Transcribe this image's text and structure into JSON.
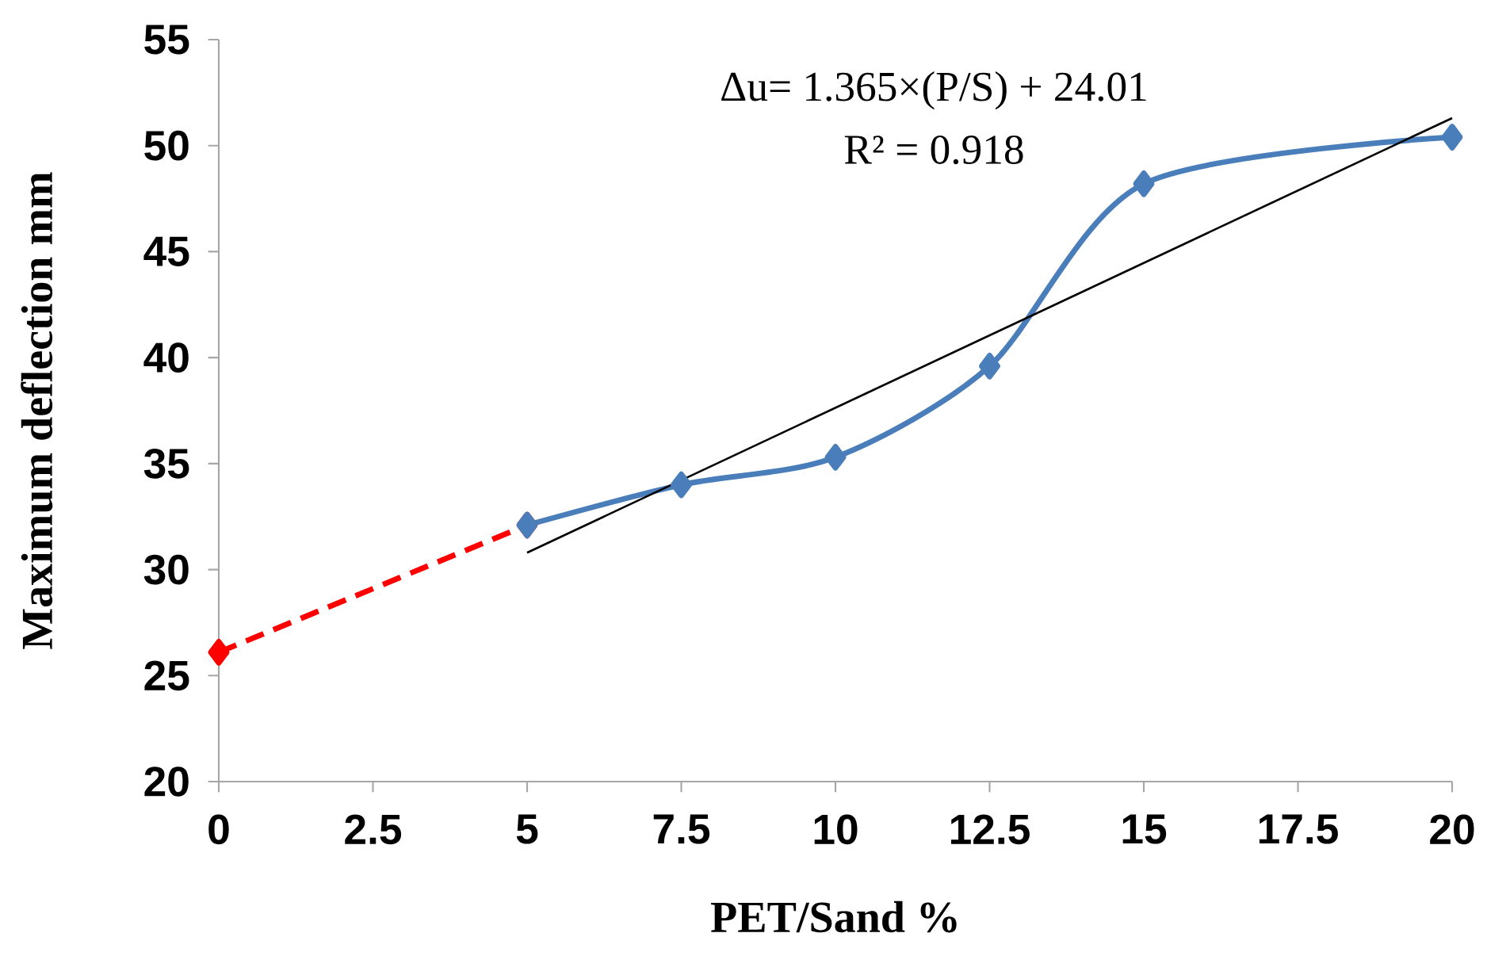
{
  "chart_data": {
    "type": "line",
    "xlabel": "PET/Sand %",
    "ylabel": "Maximum deflection mm",
    "xlim": [
      0,
      20
    ],
    "ylim": [
      20,
      55
    ],
    "xticks": [
      0,
      2.5,
      5,
      7.5,
      10,
      12.5,
      15,
      17.5,
      20
    ],
    "yticks": [
      20,
      25,
      30,
      35,
      40,
      45,
      50,
      55
    ],
    "grid": false,
    "annotations": [
      "Δu= 1.365×(P/S) + 24.01",
      "R² = 0.918"
    ],
    "series": [
      {
        "x": [
          0,
          5
        ],
        "values": [
          26.1,
          32.1
        ],
        "color": "#ff0000",
        "line_style": "dashed",
        "marker": "diamond"
      },
      {
        "x": [
          5,
          7.5,
          10,
          12.5,
          15,
          20
        ],
        "values": [
          32.1,
          34.0,
          35.3,
          39.6,
          48.2,
          50.4
        ],
        "color": "#4a7ebb",
        "line_style": "solid",
        "marker": "diamond"
      },
      {
        "x": [
          5,
          20
        ],
        "values": [
          30.8,
          51.3
        ],
        "color": "#000000",
        "line_style": "solid",
        "marker": "none"
      }
    ]
  }
}
